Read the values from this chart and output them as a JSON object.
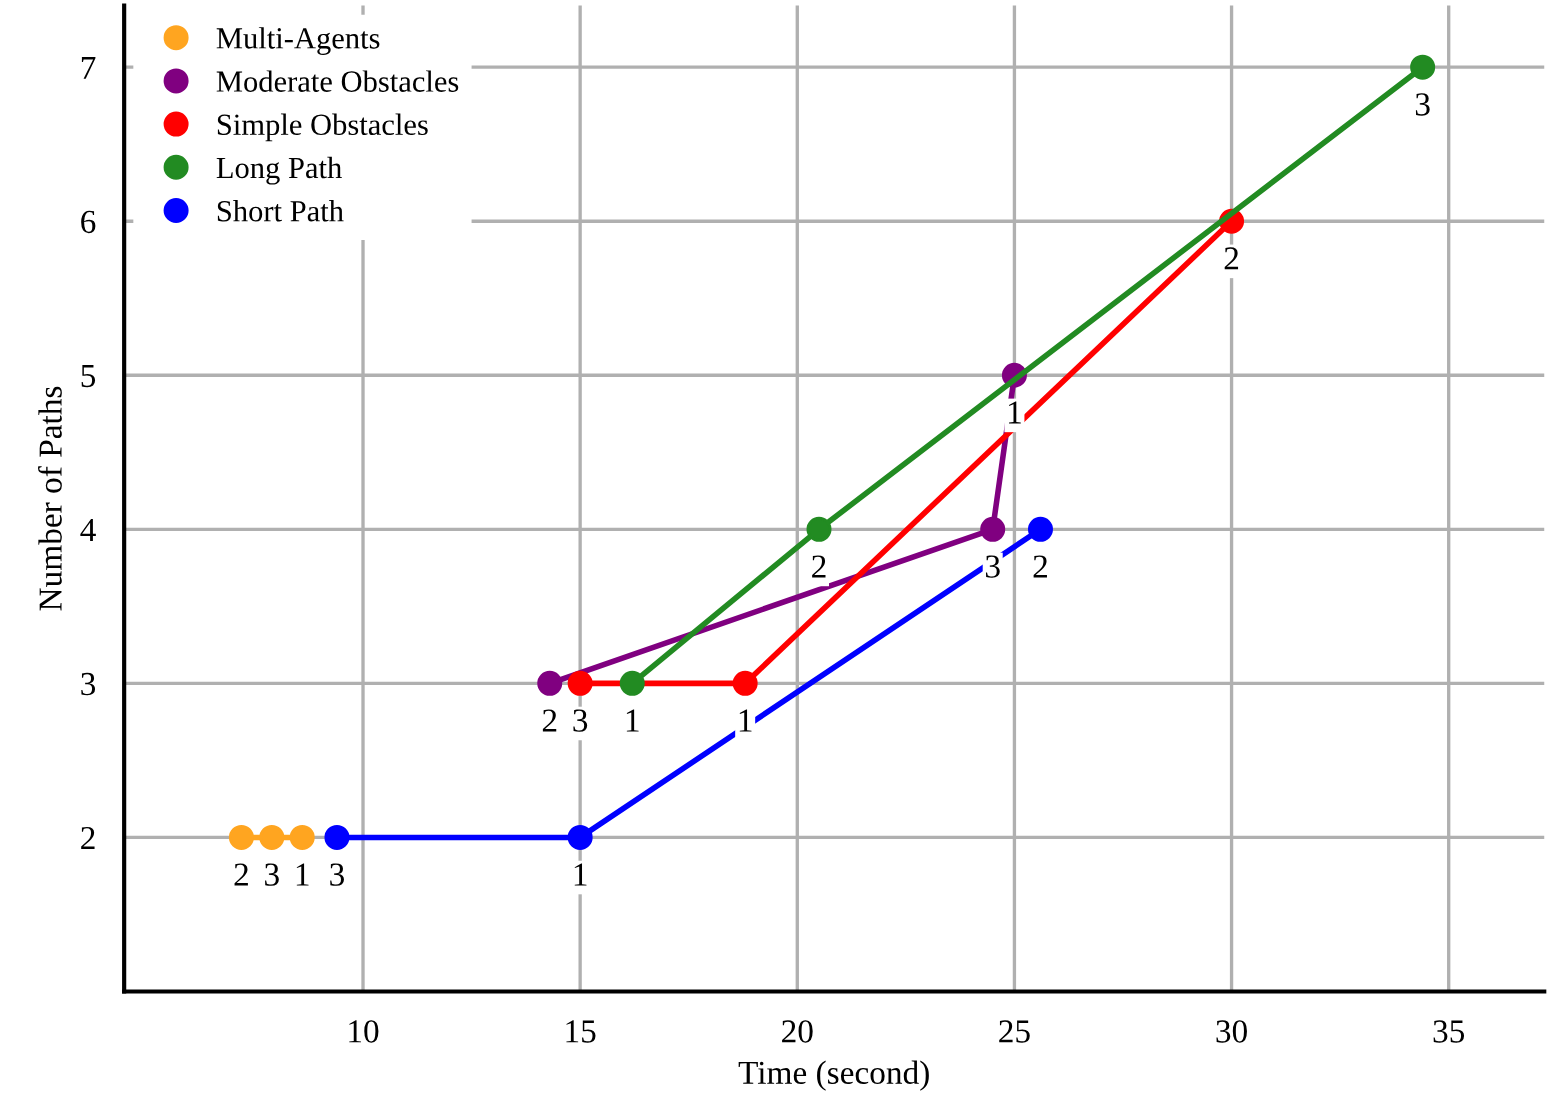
{
  "chart_data": {
    "type": "line",
    "xlabel": "Time (second)",
    "ylabel": "Number of Paths",
    "xlim": [
      4.5,
      37.2
    ],
    "ylim": [
      1,
      7.4
    ],
    "xticks": [
      10,
      15,
      20,
      25,
      30,
      35
    ],
    "yticks": [
      2,
      3,
      4,
      5,
      6,
      7
    ],
    "grid": true,
    "legend": "top left",
    "marker": "circle",
    "line_style": "solid",
    "series": [
      {
        "name": "Multi-Agents",
        "color": "#ffa520",
        "x": [
          7.2,
          7.9,
          8.6
        ],
        "values": [
          2,
          2,
          2
        ]
      },
      {
        "name": "Moderate Obstacles",
        "color": "#800080",
        "x": [
          14.3,
          24.5,
          25.0
        ],
        "values": [
          3,
          4,
          5
        ]
      },
      {
        "name": "Simple Obstacles",
        "color": "#ff0000",
        "x": [
          15.0,
          18.8,
          30.0
        ],
        "values": [
          3,
          3,
          6
        ]
      },
      {
        "name": "Long Path",
        "color": "#228b22",
        "x": [
          16.2,
          20.5,
          34.4
        ],
        "values": [
          3,
          4,
          7
        ]
      },
      {
        "name": "Short Path",
        "color": "#0000ff",
        "x": [
          9.4,
          15.0,
          25.6
        ],
        "values": [
          2,
          2,
          4
        ]
      }
    ],
    "annotations": [
      {
        "text": "2",
        "x": 7.2,
        "y": 2
      },
      {
        "text": "3",
        "x": 7.9,
        "y": 2
      },
      {
        "text": "1",
        "x": 8.6,
        "y": 2
      },
      {
        "text": "2",
        "x": 14.3,
        "y": 3
      },
      {
        "text": "3",
        "x": 24.5,
        "y": 4
      },
      {
        "text": "1",
        "x": 25.0,
        "y": 5
      },
      {
        "text": "3",
        "x": 15.0,
        "y": 3
      },
      {
        "text": "1",
        "x": 18.8,
        "y": 3
      },
      {
        "text": "2",
        "x": 30.0,
        "y": 6
      },
      {
        "text": "1",
        "x": 16.2,
        "y": 3
      },
      {
        "text": "2",
        "x": 20.5,
        "y": 4
      },
      {
        "text": "3",
        "x": 34.4,
        "y": 7
      },
      {
        "text": "3",
        "x": 9.4,
        "y": 2
      },
      {
        "text": "1",
        "x": 15.0,
        "y": 2
      },
      {
        "text": "2",
        "x": 25.6,
        "y": 4
      }
    ]
  }
}
